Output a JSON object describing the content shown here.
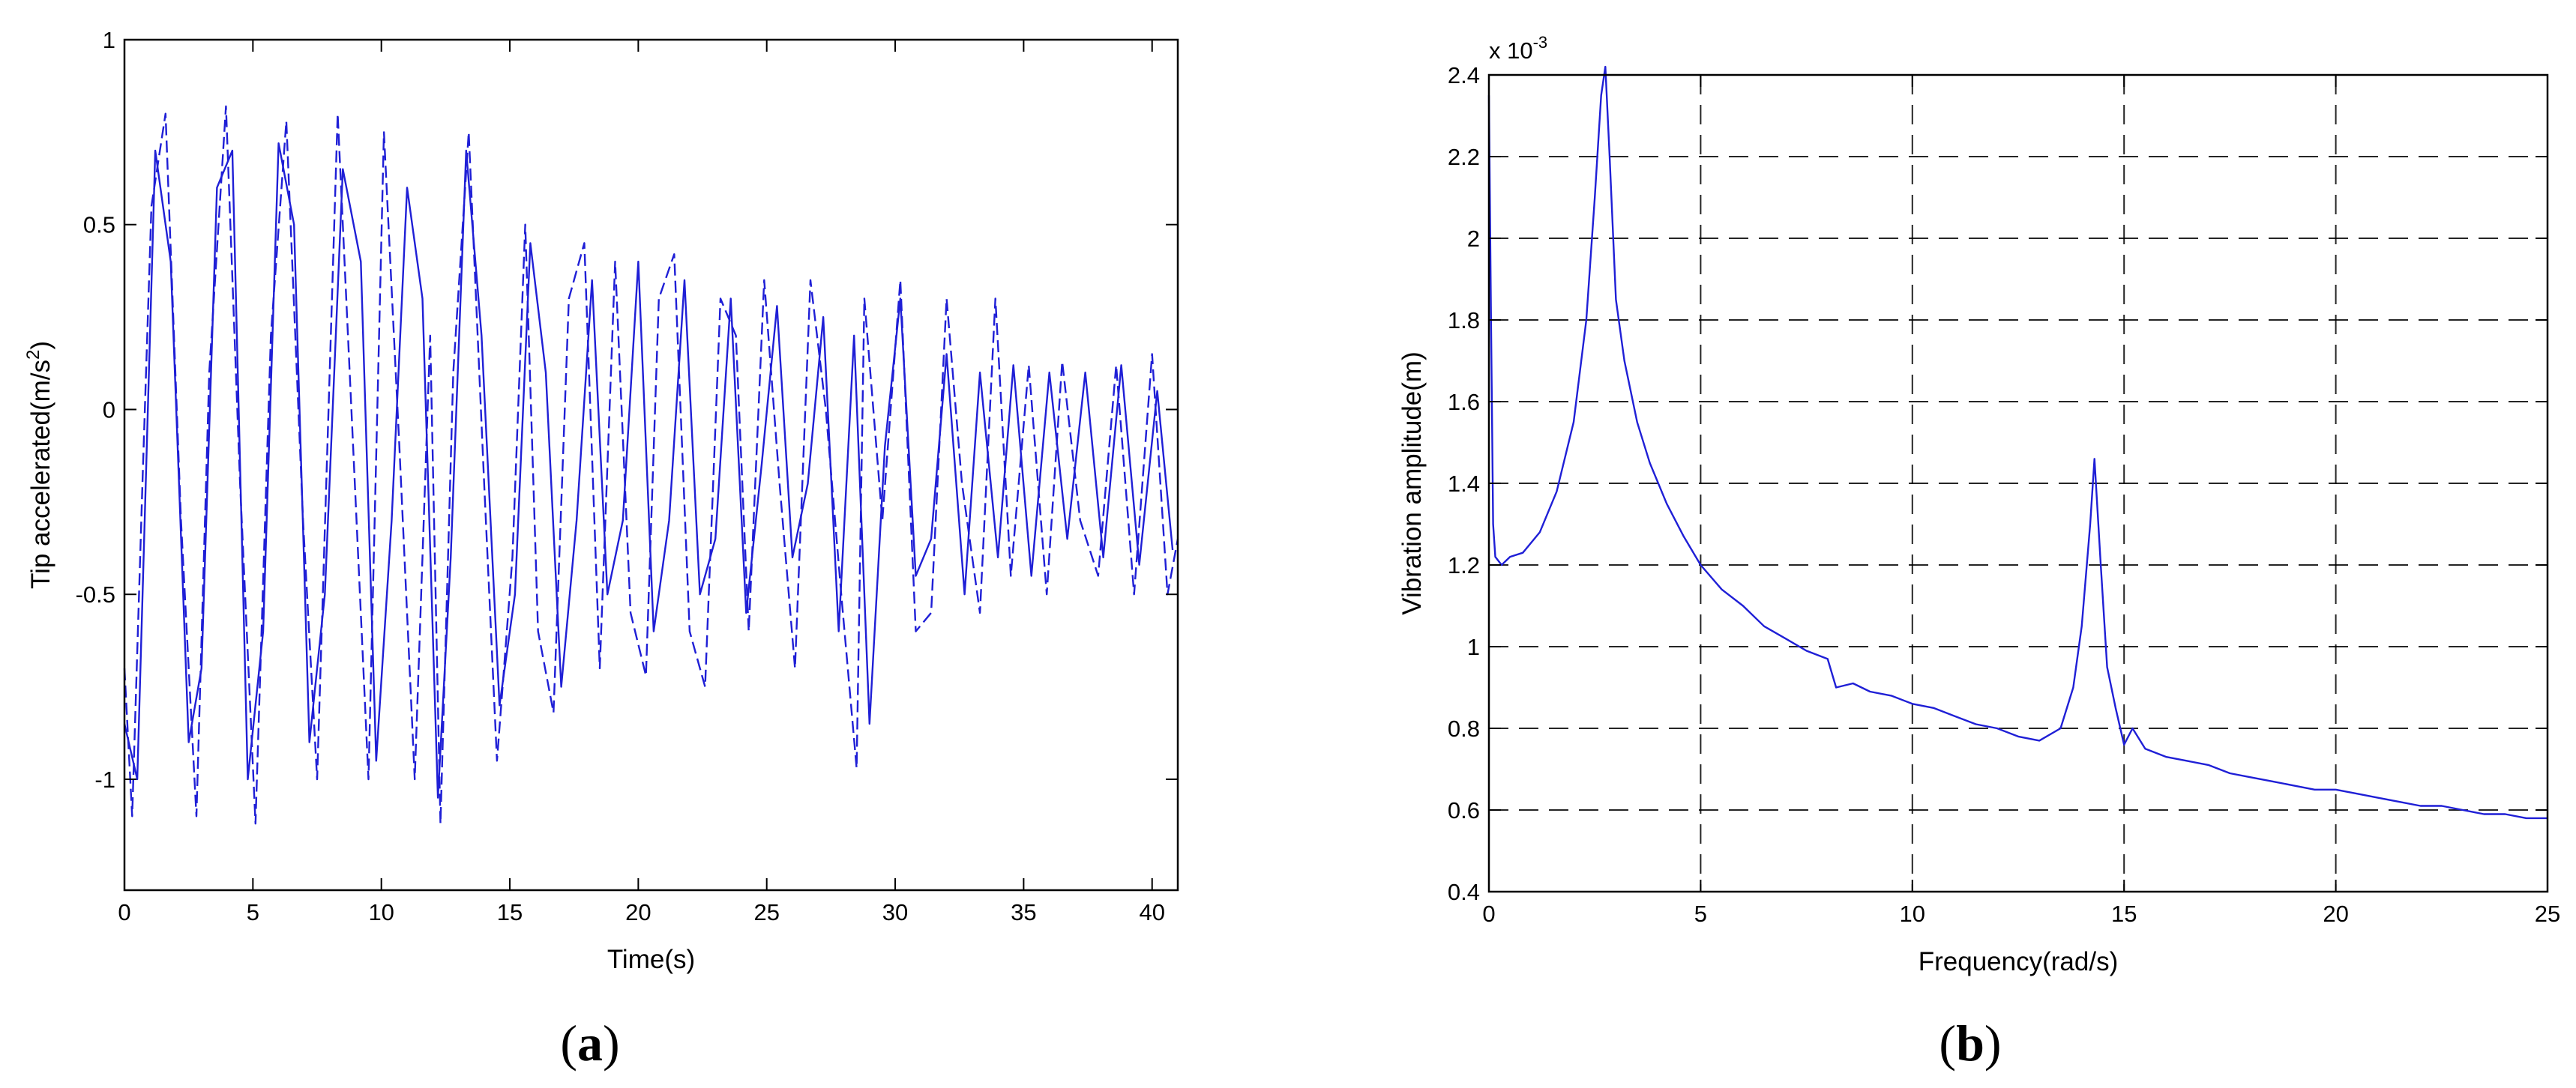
{
  "chart_data": [
    {
      "panel": "a",
      "caption_letter": "a",
      "type": "line",
      "xlabel": "Time(s)",
      "ylabel_main": "Tip accelerated(m/s",
      "ylabel_sup": "2",
      "ylabel_close": ")",
      "xlim": [
        0,
        41
      ],
      "ylim": [
        -1.3,
        1
      ],
      "xticks": [
        0,
        5,
        10,
        15,
        20,
        25,
        30,
        35,
        40
      ],
      "yticks": [
        -1,
        -0.5,
        0,
        0.5,
        1
      ],
      "xtick_labels": [
        "0",
        "5",
        "10",
        "15",
        "20",
        "25",
        "30",
        "35",
        "40"
      ],
      "ytick_labels": [
        "-1",
        "-0.5",
        "0",
        "0.5",
        "1"
      ],
      "grid": false,
      "color": "#1f1fd6",
      "series": [
        {
          "style": "dashed",
          "x": [
            0,
            0.3,
            0.7,
            1.05,
            1.6,
            2.2,
            2.8,
            3.3,
            3.95,
            4.5,
            5.1,
            5.7,
            6.3,
            6.95,
            7.5,
            8.3,
            8.9,
            9.5,
            10.1,
            10.7,
            11.3,
            11.9,
            12.3,
            12.8,
            13.4,
            14.0,
            14.5,
            15.1,
            15.6,
            16.1,
            16.7,
            17.3,
            17.9,
            18.5,
            19.1,
            19.7,
            20.3,
            20.8,
            21.4,
            22.0,
            22.6,
            23.2,
            23.8,
            24.3,
            24.9,
            25.5,
            26.1,
            26.7,
            27.3,
            27.9,
            28.5,
            28.8,
            29.5,
            30.2,
            30.8,
            31.4,
            32.0,
            32.6,
            33.3,
            33.9,
            34.5,
            35.2,
            35.9,
            36.5,
            37.2,
            37.9,
            38.6,
            39.3,
            40.0,
            40.6,
            41.0
          ],
          "y": [
            -0.7,
            -1.1,
            -0.2,
            0.55,
            0.8,
            -0.3,
            -1.1,
            0.1,
            0.82,
            -0.2,
            -1.12,
            0.2,
            0.78,
            -0.3,
            -1.0,
            0.8,
            -0.1,
            -1.0,
            0.75,
            -0.1,
            -1.0,
            0.2,
            -1.12,
            0.1,
            0.75,
            -0.2,
            -0.95,
            -0.4,
            0.5,
            -0.6,
            -0.82,
            0.3,
            0.45,
            -0.7,
            0.4,
            -0.55,
            -0.72,
            0.3,
            0.42,
            -0.6,
            -0.75,
            0.3,
            0.2,
            -0.6,
            0.35,
            -0.2,
            -0.7,
            0.35,
            0.0,
            -0.5,
            -0.97,
            0.3,
            -0.3,
            0.35,
            -0.6,
            -0.55,
            0.3,
            -0.2,
            -0.55,
            0.3,
            -0.45,
            0.12,
            -0.5,
            0.13,
            -0.3,
            -0.45,
            0.12,
            -0.5,
            0.15,
            -0.5,
            -0.35
          ]
        },
        {
          "style": "solid",
          "x": [
            0,
            0.5,
            1.2,
            1.8,
            2.5,
            3.0,
            3.6,
            4.2,
            4.8,
            5.4,
            6.0,
            6.6,
            7.2,
            7.8,
            8.5,
            9.2,
            9.8,
            10.4,
            11.0,
            11.6,
            12.2,
            12.7,
            13.3,
            13.9,
            14.6,
            15.2,
            15.8,
            16.4,
            17.0,
            17.6,
            18.2,
            18.8,
            19.4,
            20.0,
            20.6,
            21.2,
            21.8,
            22.4,
            23.0,
            23.6,
            24.2,
            24.8,
            25.4,
            26.0,
            26.6,
            27.2,
            27.8,
            28.4,
            29.0,
            29.6,
            30.2,
            30.8,
            31.4,
            32.0,
            32.7,
            33.3,
            34.0,
            34.6,
            35.3,
            36.0,
            36.7,
            37.4,
            38.1,
            38.8,
            39.5,
            40.2,
            40.8
          ],
          "y": [
            -0.85,
            -1.0,
            0.7,
            0.4,
            -0.9,
            -0.7,
            0.6,
            0.7,
            -1.0,
            -0.6,
            0.72,
            0.5,
            -0.9,
            -0.5,
            0.65,
            0.4,
            -0.95,
            -0.3,
            0.6,
            0.3,
            -1.05,
            -0.4,
            0.7,
            0.2,
            -0.8,
            -0.5,
            0.45,
            0.1,
            -0.75,
            -0.3,
            0.35,
            -0.5,
            -0.3,
            0.4,
            -0.6,
            -0.3,
            0.35,
            -0.5,
            -0.35,
            0.3,
            -0.55,
            -0.15,
            0.28,
            -0.4,
            -0.2,
            0.25,
            -0.6,
            0.2,
            -0.85,
            -0.1,
            0.3,
            -0.45,
            -0.35,
            0.15,
            -0.5,
            0.1,
            -0.4,
            0.12,
            -0.45,
            0.1,
            -0.35,
            0.1,
            -0.4,
            0.12,
            -0.42,
            0.05,
            -0.38
          ]
        }
      ]
    },
    {
      "panel": "b",
      "caption_letter": "b",
      "type": "line",
      "xlabel": "Frequency(rad/s)",
      "ylabel": "Vibration amplitude(m)",
      "scale_note_base": "x 10",
      "scale_note_exp": "-3",
      "xlim": [
        0,
        25
      ],
      "ylim": [
        0.4,
        2.4
      ],
      "xticks": [
        0,
        5,
        10,
        15,
        20,
        25
      ],
      "yticks": [
        0.4,
        0.6,
        0.8,
        1.0,
        1.2,
        1.4,
        1.6,
        1.8,
        2.0,
        2.2,
        2.4
      ],
      "xtick_labels": [
        "0",
        "5",
        "10",
        "15",
        "20",
        "25"
      ],
      "ytick_labels": [
        "0.4",
        "0.6",
        "0.8",
        "1",
        "1.2",
        "1.4",
        "1.6",
        "1.8",
        "2",
        "2.2",
        "2.4"
      ],
      "grid": true,
      "color": "#1f1fd6",
      "series": [
        {
          "style": "solid",
          "x": [
            0,
            0.05,
            0.1,
            0.15,
            0.3,
            0.5,
            0.8,
            1.2,
            1.6,
            2.0,
            2.3,
            2.5,
            2.65,
            2.75,
            2.85,
            3.0,
            3.2,
            3.5,
            3.8,
            4.2,
            4.6,
            5.0,
            5.5,
            6.0,
            6.5,
            7.0,
            7.5,
            8.0,
            8.2,
            8.6,
            9.0,
            9.5,
            10.0,
            10.5,
            11.0,
            11.5,
            12.0,
            12.5,
            13.0,
            13.5,
            13.8,
            14.0,
            14.2,
            14.3,
            14.45,
            14.6,
            14.8,
            15.0,
            15.2,
            15.5,
            16.0,
            16.5,
            17.0,
            17.5,
            18.0,
            18.5,
            19.0,
            19.5,
            20.0,
            20.5,
            21.0,
            21.5,
            22.0,
            22.5,
            23.0,
            23.5,
            24.0,
            24.5,
            25.0
          ],
          "y": [
            2.35,
            1.8,
            1.3,
            1.22,
            1.2,
            1.22,
            1.23,
            1.28,
            1.38,
            1.55,
            1.8,
            2.1,
            2.35,
            2.42,
            2.2,
            1.85,
            1.7,
            1.55,
            1.45,
            1.35,
            1.27,
            1.2,
            1.14,
            1.1,
            1.05,
            1.02,
            0.99,
            0.97,
            0.9,
            0.91,
            0.89,
            0.88,
            0.86,
            0.85,
            0.83,
            0.81,
            0.8,
            0.78,
            0.77,
            0.8,
            0.9,
            1.05,
            1.3,
            1.46,
            1.2,
            0.95,
            0.85,
            0.76,
            0.8,
            0.75,
            0.73,
            0.72,
            0.71,
            0.69,
            0.68,
            0.67,
            0.66,
            0.65,
            0.65,
            0.64,
            0.63,
            0.62,
            0.61,
            0.61,
            0.6,
            0.59,
            0.59,
            0.58,
            0.58
          ]
        }
      ]
    }
  ]
}
